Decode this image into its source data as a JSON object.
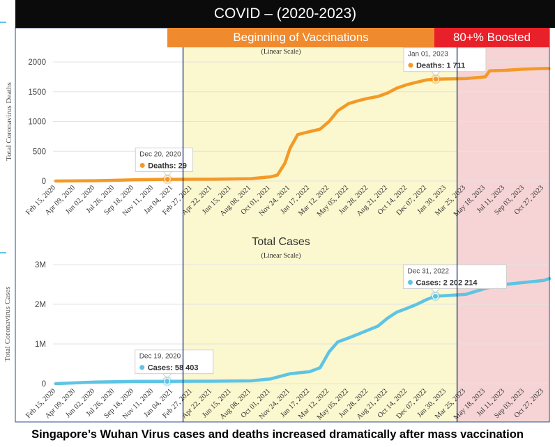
{
  "banner": {
    "title": "COVID – (2020-2023)"
  },
  "bands": {
    "vaccination": {
      "label": "Beginning of Vaccinations",
      "color": "#ef8a2e",
      "start": "Feb 2021",
      "end": "Mar 2023"
    },
    "boosted": {
      "label": "80+% Boosted",
      "color": "#e8202a",
      "start": "Mar 2023"
    }
  },
  "caption": "Singapore’s Wuhan Virus cases and deaths increased dramatically after mass vaccination",
  "chart_data": [
    {
      "type": "line",
      "title": "",
      "subtitle": "(Linear Scale)",
      "ylabel": "Total Coronavirus Deaths",
      "xlabel": "",
      "ylim": [
        0,
        2000
      ],
      "ytick_labels": [
        "0",
        "500",
        "1000",
        "1500",
        "2000"
      ],
      "xtick_labels": [
        "Feb 15, 2020",
        "Apr 09, 2020",
        "Jun 02, 2020",
        "Jul 26, 2020",
        "Sep 18, 2020",
        "Nov 11, 2020",
        "Jan 04, 2021",
        "Feb 27, 2021",
        "Apr 22, 2021",
        "Jun 15, 2021",
        "Aug 08, 2021",
        "Oct 01, 2021",
        "Nov 24, 2021",
        "Jan 17, 2022",
        "Mar 12, 2022",
        "May 05, 2022",
        "Jun 28, 2022",
        "Aug 21, 2022",
        "Oct 14, 2022",
        "Dec 07, 2022",
        "Jan 30, 2023",
        "Mar 25, 2023",
        "May 18, 2023",
        "Jul 11, 2023",
        "Sep 03, 2023",
        "Oct 27, 2023"
      ],
      "color": "#f39a26",
      "grid": true,
      "series": [
        {
          "x": [
            "Feb 15, 2020",
            "Jun 02, 2020",
            "Sep 18, 2020",
            "Dec 20, 2020",
            "Apr 22, 2021",
            "Aug 08, 2021",
            "Oct 01, 2021",
            "Oct 20, 2021",
            "Nov 10, 2021",
            "Nov 24, 2021",
            "Dec 15, 2021",
            "Jan 17, 2022",
            "Feb 15, 2022",
            "Mar 12, 2022",
            "Apr 05, 2022",
            "May 05, 2022",
            "Jun 01, 2022",
            "Jun 28, 2022",
            "Jul 25, 2022",
            "Aug 21, 2022",
            "Sep 15, 2022",
            "Oct 14, 2022",
            "Nov 10, 2022",
            "Dec 07, 2022",
            "Jan 01, 2023",
            "Mar 25, 2023",
            "May 18, 2023",
            "May 30, 2023",
            "Jul 11, 2023",
            "Sep 03, 2023",
            "Oct 27, 2023",
            "Nov 10, 2023"
          ],
          "y": [
            0,
            5,
            20,
            29,
            30,
            40,
            70,
            100,
            300,
            550,
            780,
            830,
            870,
            1000,
            1180,
            1300,
            1350,
            1390,
            1420,
            1480,
            1560,
            1620,
            1660,
            1700,
            1711,
            1720,
            1750,
            1850,
            1860,
            1880,
            1890,
            1890
          ]
        }
      ],
      "annotations": [
        {
          "date": "Dec 20, 2020",
          "label": "Deaths",
          "value_text": "29",
          "x": "Dec 20, 2020",
          "y": 29
        },
        {
          "date": "Jan 01, 2023",
          "label": "Deaths",
          "value_text": "1 711",
          "x": "Jan 01, 2023",
          "y": 1711
        }
      ]
    },
    {
      "type": "line",
      "title": "Total Cases",
      "subtitle": "(Linear Scale)",
      "ylabel": "Total Coronavirus Cases",
      "xlabel": "",
      "ylim": [
        0,
        3000000
      ],
      "ytick_labels": [
        "0",
        "1M",
        "2M",
        "3M"
      ],
      "xtick_labels": [
        "Feb 15, 2020",
        "Apr 09, 2020",
        "Jun 02, 2020",
        "Jul 26, 2020",
        "Sep 18, 2020",
        "Nov 11, 2020",
        "Jan 04, 2021",
        "Feb 27, 2021",
        "Apr 22, 2021",
        "Jun 15, 2021",
        "Aug 08, 2021",
        "Oct 01, 2021",
        "Nov 24, 2021",
        "Jan 17, 2022",
        "Mar 12, 2022",
        "May 05, 2022",
        "Jun 28, 2022",
        "Aug 21, 2022",
        "Oct 14, 2022",
        "Dec 07, 2022",
        "Jan 30, 2023",
        "Mar 25, 2023",
        "May 18, 2023",
        "Jul 11, 2023",
        "Sep 03, 2023",
        "Oct 27, 2023"
      ],
      "color": "#5ec4e3",
      "grid": true,
      "series": [
        {
          "x": [
            "Feb 15, 2020",
            "Apr 09, 2020",
            "Jun 02, 2020",
            "Sep 18, 2020",
            "Dec 19, 2020",
            "Apr 22, 2021",
            "Aug 08, 2021",
            "Oct 01, 2021",
            "Nov 24, 2021",
            "Jan 17, 2022",
            "Feb 15, 2022",
            "Mar 12, 2022",
            "Apr 05, 2022",
            "May 05, 2022",
            "Jun 01, 2022",
            "Jun 28, 2022",
            "Jul 25, 2022",
            "Aug 21, 2022",
            "Sep 15, 2022",
            "Oct 14, 2022",
            "Nov 10, 2022",
            "Dec 07, 2022",
            "Dec 31, 2022",
            "Mar 25, 2023",
            "May 18, 2023",
            "Jul 11, 2023",
            "Sep 03, 2023",
            "Oct 27, 2023",
            "Dec 10, 2023"
          ],
          "y": [
            0,
            20000,
            40000,
            57000,
            58403,
            62000,
            70000,
            120000,
            250000,
            300000,
            400000,
            800000,
            1050000,
            1150000,
            1250000,
            1350000,
            1450000,
            1650000,
            1800000,
            1900000,
            2000000,
            2120000,
            2202214,
            2250000,
            2400000,
            2500000,
            2550000,
            2600000,
            2650000
          ]
        }
      ],
      "annotations": [
        {
          "date": "Dec 19, 2020",
          "label": "Cases",
          "value_text": "58 403",
          "x": "Dec 19, 2020",
          "y": 58403
        },
        {
          "date": "Dec 31, 2022",
          "label": "Cases",
          "value_text": "2 202 214",
          "x": "Dec 31, 2022",
          "y": 2202214
        }
      ]
    }
  ]
}
